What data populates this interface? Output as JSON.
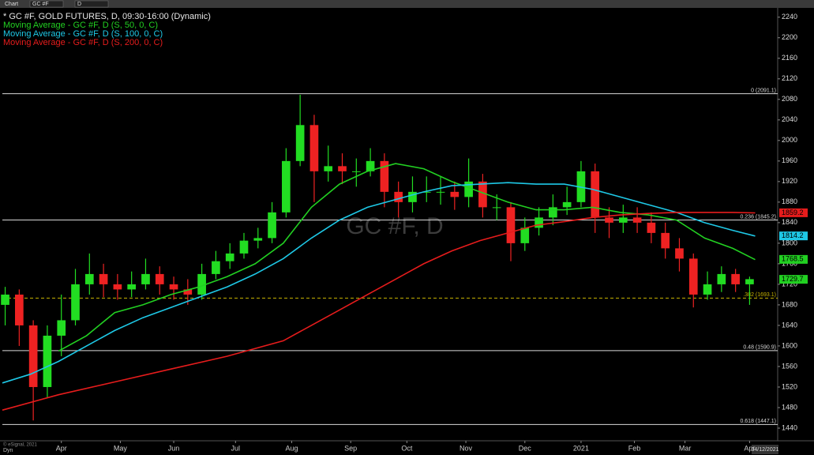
{
  "toolbar": {
    "items": [
      "Chart",
      "GC #F",
      "D"
    ]
  },
  "chart_data": {
    "type": "candlestick",
    "title": "* GC #F, GOLD FUTURES, D, 09:30-16:00 (Dynamic)",
    "watermark": "GC #F, D",
    "copyright": "© eSignal, 2021",
    "mode": "Dyn",
    "last_date": "04/12/2021",
    "up_color": "#22dd22",
    "down_color": "#ee2222",
    "x": [
      1,
      6,
      11,
      16,
      21,
      26,
      31,
      36,
      41,
      46,
      51,
      56,
      61,
      66,
      71,
      76,
      81,
      86,
      91,
      96,
      101,
      106,
      111,
      116,
      121,
      126,
      131,
      136,
      141,
      146,
      151,
      156,
      161,
      166,
      171,
      176,
      181,
      186,
      191,
      196,
      201,
      206,
      211,
      216,
      221,
      226,
      231,
      236,
      241,
      246,
      251,
      256,
      261,
      266
    ],
    "open": [
      1680,
      1700,
      1640,
      1520,
      1620,
      1650,
      1720,
      1740,
      1720,
      1710,
      1720,
      1740,
      1720,
      1710,
      1700,
      1740,
      1765,
      1780,
      1805,
      1810,
      1860,
      1960,
      2030,
      1940,
      1950,
      1940,
      1940,
      1960,
      1900,
      1880,
      1900,
      1900,
      1900,
      1890,
      1920,
      1870,
      1870,
      1800,
      1830,
      1850,
      1870,
      1880,
      1940,
      1850,
      1840,
      1850,
      1840,
      1820,
      1790,
      1770,
      1700,
      1720,
      1740,
      1720
    ],
    "high": [
      1715,
      1710,
      1650,
      1640,
      1700,
      1750,
      1780,
      1760,
      1740,
      1745,
      1770,
      1755,
      1735,
      1730,
      1760,
      1785,
      1800,
      1820,
      1830,
      1880,
      1985,
      2089,
      2050,
      1990,
      1975,
      1965,
      1985,
      1975,
      1920,
      1930,
      1930,
      1930,
      1920,
      1965,
      1935,
      1895,
      1880,
      1850,
      1870,
      1895,
      1910,
      1960,
      1955,
      1870,
      1875,
      1870,
      1860,
      1840,
      1810,
      1780,
      1745,
      1755,
      1750,
      1735
    ],
    "low": [
      1640,
      1600,
      1455,
      1500,
      1580,
      1640,
      1700,
      1695,
      1690,
      1695,
      1710,
      1700,
      1690,
      1680,
      1690,
      1730,
      1750,
      1770,
      1790,
      1800,
      1850,
      1950,
      1880,
      1920,
      1915,
      1910,
      1930,
      1870,
      1850,
      1860,
      1880,
      1875,
      1865,
      1870,
      1850,
      1845,
      1765,
      1785,
      1815,
      1835,
      1855,
      1870,
      1820,
      1810,
      1820,
      1820,
      1800,
      1770,
      1745,
      1675,
      1690,
      1705,
      1705,
      1680
    ],
    "close": [
      1700,
      1640,
      1520,
      1620,
      1650,
      1720,
      1740,
      1720,
      1710,
      1720,
      1740,
      1720,
      1710,
      1700,
      1740,
      1765,
      1780,
      1805,
      1810,
      1860,
      1960,
      2030,
      1940,
      1950,
      1940,
      1940,
      1960,
      1900,
      1880,
      1900,
      1900,
      1900,
      1890,
      1920,
      1870,
      1870,
      1800,
      1830,
      1850,
      1870,
      1880,
      1940,
      1850,
      1840,
      1850,
      1840,
      1820,
      1790,
      1770,
      1700,
      1720,
      1740,
      1720,
      1730
    ],
    "series": [
      {
        "name": "Moving Average - GC #F, D (S, 50, 0, C)",
        "color": "#22d022",
        "x": [
          20,
          30,
          40,
          50,
          60,
          70,
          80,
          90,
          100,
          110,
          120,
          130,
          140,
          150,
          160,
          170,
          180,
          190,
          200,
          210,
          220,
          230,
          240,
          250,
          260,
          268
        ],
        "values": [
          1590,
          1620,
          1665,
          1680,
          1700,
          1715,
          1735,
          1760,
          1800,
          1870,
          1915,
          1940,
          1955,
          1945,
          1920,
          1900,
          1880,
          1865,
          1865,
          1870,
          1860,
          1855,
          1845,
          1810,
          1790,
          1768
        ]
      },
      {
        "name": "Moving Average - GC #F, D (S, 100, 0, C)",
        "color": "#1ec8e6",
        "x": [
          0,
          10,
          20,
          30,
          40,
          50,
          60,
          70,
          80,
          90,
          100,
          110,
          120,
          130,
          140,
          150,
          160,
          170,
          180,
          190,
          200,
          210,
          220,
          230,
          240,
          250,
          260,
          268
        ],
        "values": [
          1528,
          1545,
          1570,
          1600,
          1630,
          1655,
          1675,
          1695,
          1715,
          1740,
          1770,
          1810,
          1845,
          1870,
          1885,
          1900,
          1912,
          1915,
          1918,
          1915,
          1915,
          1905,
          1890,
          1875,
          1860,
          1840,
          1825,
          1814
        ]
      },
      {
        "name": "Moving Average - GC #F, D (S, 200, 0, C)",
        "color": "#e61c1c",
        "x": [
          0,
          20,
          40,
          60,
          80,
          100,
          110,
          120,
          130,
          140,
          150,
          160,
          170,
          180,
          190,
          200,
          210,
          220,
          230,
          240,
          250,
          260,
          268
        ],
        "values": [
          1475,
          1505,
          1530,
          1555,
          1580,
          1610,
          1640,
          1670,
          1700,
          1730,
          1760,
          1785,
          1805,
          1820,
          1835,
          1842,
          1850,
          1855,
          1858,
          1860,
          1860,
          1860,
          1859
        ]
      }
    ],
    "levels": [
      {
        "value": 2091.1,
        "label": "0 (2091.1)",
        "color": "#d8d8d8"
      },
      {
        "value": 1845.2,
        "label": "0.236 (1845.2)",
        "color": "#d8d8d8"
      },
      {
        "value": 1693.1,
        "label": ".382 (1693.1)",
        "color": "#c8b400",
        "dashed": true
      },
      {
        "value": 1590.9,
        "label": "0.48 (1590.9)",
        "color": "#d8d8d8"
      },
      {
        "value": 1447.1,
        "label": "0.618 (1447.1)",
        "color": "#d8d8d8"
      }
    ],
    "price_tags": [
      {
        "value": 1859.2,
        "color": "#e61c1c"
      },
      {
        "value": 1814.2,
        "color": "#1ec8e6"
      },
      {
        "value": 1768.5,
        "color": "#22d022"
      },
      {
        "value": 1729.7,
        "color": "#22d022"
      }
    ],
    "xlim": [
      0,
      276
    ],
    "xticks": [
      {
        "value": 21,
        "label": "Apr"
      },
      {
        "value": 42,
        "label": "May"
      },
      {
        "value": 61,
        "label": "Jun"
      },
      {
        "value": 83,
        "label": "Jul"
      },
      {
        "value": 103,
        "label": "Aug"
      },
      {
        "value": 124,
        "label": "Sep"
      },
      {
        "value": 144,
        "label": "Oct"
      },
      {
        "value": 165,
        "label": "Nov"
      },
      {
        "value": 186,
        "label": "Dec"
      },
      {
        "value": 206,
        "label": "2021"
      },
      {
        "value": 225,
        "label": "Feb"
      },
      {
        "value": 243,
        "label": "Mar"
      },
      {
        "value": 266,
        "label": "Apr"
      }
    ],
    "ylim": [
      1420,
      2255
    ],
    "yticks": [
      1440,
      1480,
      1520,
      1560,
      1600,
      1640,
      1680,
      1720,
      1760,
      1800,
      1840,
      1880,
      1920,
      1960,
      2000,
      2040,
      2080,
      2120,
      2160,
      2200,
      2240
    ]
  }
}
